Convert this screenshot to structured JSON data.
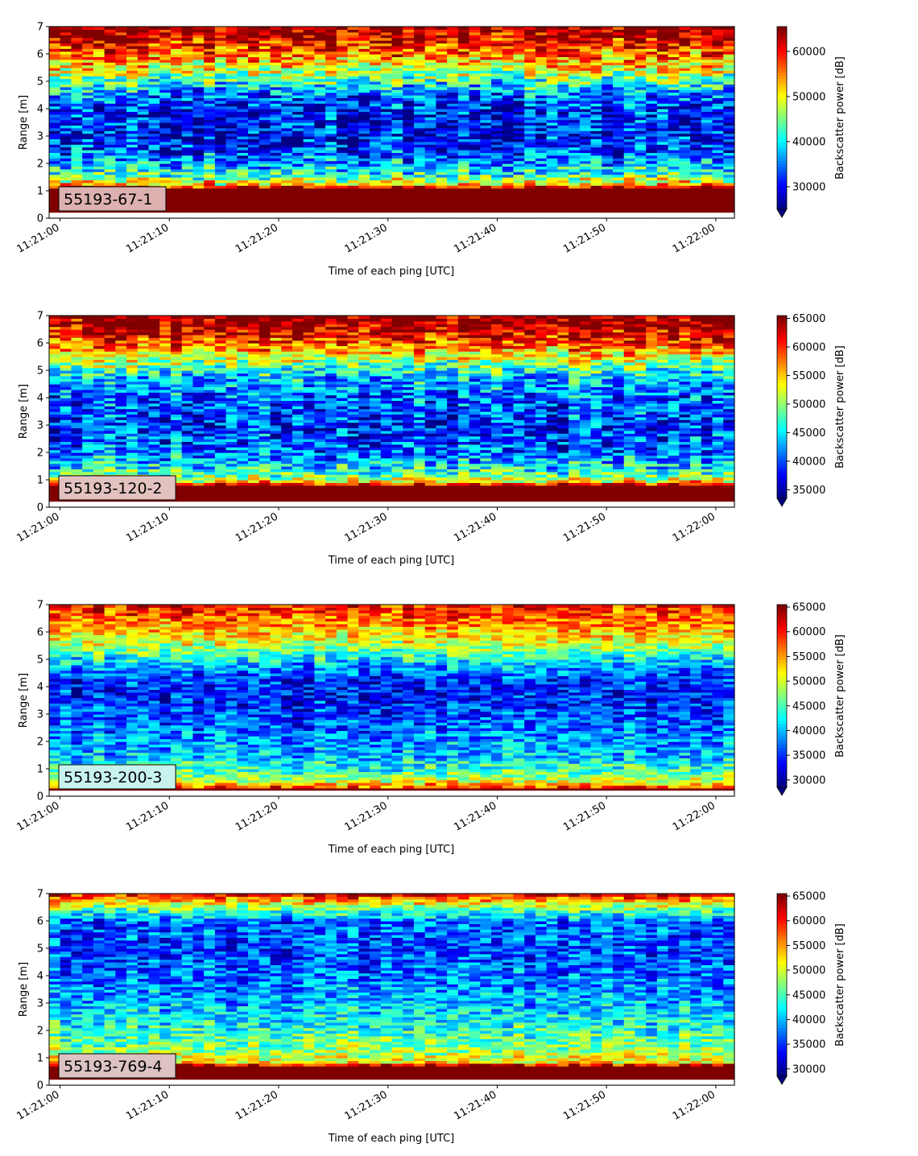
{
  "chart_data": [
    {
      "type": "heatmap",
      "label": "55193-67-1",
      "label_bg": "#dcb1b0",
      "xlabel": "Time of each ping [UTC]",
      "ylabel": "Range [m]",
      "colorbar_label": "Backscatter power [dB]",
      "colormap": "jet",
      "extend": "min",
      "x_start": "11:21:00",
      "x_end": "11:22:00",
      "xticks": [
        "11:21:00",
        "11:21:10",
        "11:21:20",
        "11:21:30",
        "11:21:40",
        "11:21:50",
        "11:22:00"
      ],
      "ylim": [
        0,
        7
      ],
      "yticks": [
        0,
        1,
        2,
        3,
        4,
        5,
        6,
        7
      ],
      "clim": [
        25000,
        65500
      ],
      "cticks": [
        30000,
        40000,
        50000,
        60000
      ],
      "bottom_band": {
        "from": 0.25,
        "to": 1.1,
        "value": 65500
      },
      "profile": [
        [
          0,
          65500
        ],
        [
          1.1,
          65500
        ],
        [
          1.25,
          52000
        ],
        [
          1.6,
          42000
        ],
        [
          2.2,
          34000
        ],
        [
          3.0,
          30000
        ],
        [
          4.0,
          31000
        ],
        [
          4.5,
          35000
        ],
        [
          5.0,
          42000
        ],
        [
          5.5,
          50000
        ],
        [
          6.0,
          56000
        ],
        [
          6.6,
          62000
        ],
        [
          7.0,
          65500
        ]
      ],
      "noise": 8000,
      "trend": 3000
    },
    {
      "type": "heatmap",
      "label": "55193-120-2",
      "label_bg": "#e2c2bf",
      "xlabel": "Time of each ping [UTC]",
      "ylabel": "Range [m]",
      "colorbar_label": "Backscatter power [dB]",
      "colormap": "jet",
      "extend": "min",
      "x_start": "11:21:00",
      "x_end": "11:22:00",
      "xticks": [
        "11:21:00",
        "11:21:10",
        "11:21:20",
        "11:21:30",
        "11:21:40",
        "11:21:50",
        "11:22:00"
      ],
      "ylim": [
        0,
        7
      ],
      "yticks": [
        0,
        1,
        2,
        3,
        4,
        5,
        6,
        7
      ],
      "clim": [
        33500,
        65500
      ],
      "cticks": [
        35000,
        40000,
        45000,
        50000,
        55000,
        60000,
        65000
      ],
      "bottom_band": {
        "from": 0.25,
        "to": 0.8,
        "value": 65500
      },
      "profile": [
        [
          0,
          65500
        ],
        [
          0.8,
          65500
        ],
        [
          0.95,
          54000
        ],
        [
          1.3,
          47000
        ],
        [
          2.0,
          41000
        ],
        [
          3.0,
          39000
        ],
        [
          4.0,
          40500
        ],
        [
          4.8,
          44000
        ],
        [
          5.3,
          50000
        ],
        [
          5.8,
          57000
        ],
        [
          6.4,
          63000
        ],
        [
          7.0,
          65500
        ]
      ],
      "noise": 6000,
      "trend": 2500
    },
    {
      "type": "heatmap",
      "label": "55193-200-3",
      "label_bg": "#c8f2ee",
      "xlabel": "Time of each ping [UTC]",
      "ylabel": "Range [m]",
      "colorbar_label": "Backscatter power [dB]",
      "colormap": "jet",
      "extend": "min",
      "x_start": "11:21:00",
      "x_end": "11:22:00",
      "xticks": [
        "11:21:00",
        "11:21:10",
        "11:21:20",
        "11:21:30",
        "11:21:40",
        "11:21:50",
        "11:22:00"
      ],
      "ylim": [
        0,
        7
      ],
      "yticks": [
        0,
        1,
        2,
        3,
        4,
        5,
        6,
        7
      ],
      "clim": [
        28500,
        65500
      ],
      "cticks": [
        30000,
        35000,
        40000,
        45000,
        50000,
        55000,
        60000,
        65000
      ],
      "bottom_band": {
        "from": 0.15,
        "to": 0.3,
        "value": 65500
      },
      "profile": [
        [
          0,
          65500
        ],
        [
          0.3,
          60000
        ],
        [
          0.5,
          52000
        ],
        [
          0.9,
          45000
        ],
        [
          1.5,
          40000
        ],
        [
          2.5,
          37000
        ],
        [
          3.5,
          34000
        ],
        [
          4.3,
          34500
        ],
        [
          5.0,
          42000
        ],
        [
          5.6,
          50000
        ],
        [
          6.2,
          55000
        ],
        [
          7.0,
          60000
        ]
      ],
      "noise": 5500,
      "trend": 2000
    },
    {
      "type": "heatmap",
      "label": "55193-769-4",
      "label_bg": "#dcc2c2",
      "xlabel": "Time of each ping [UTC]",
      "ylabel": "Range [m]",
      "colorbar_label": "Backscatter power [dB]",
      "colormap": "jet",
      "extend": "min",
      "x_start": "11:21:00",
      "x_end": "11:22:00",
      "xticks": [
        "11:21:00",
        "11:21:10",
        "11:21:20",
        "11:21:30",
        "11:21:40",
        "11:21:50",
        "11:22:00"
      ],
      "ylim": [
        0,
        7
      ],
      "yticks": [
        0,
        1,
        2,
        3,
        4,
        5,
        6,
        7
      ],
      "clim": [
        28500,
        65500
      ],
      "cticks": [
        30000,
        35000,
        40000,
        45000,
        50000,
        55000,
        60000,
        65000
      ],
      "bottom_band": {
        "from": 0.25,
        "to": 0.7,
        "value": 65500
      },
      "profile": [
        [
          0,
          65500
        ],
        [
          0.7,
          65500
        ],
        [
          0.85,
          52000
        ],
        [
          1.2,
          48000
        ],
        [
          2.0,
          44000
        ],
        [
          3.0,
          40000
        ],
        [
          4.0,
          37000
        ],
        [
          5.0,
          36000
        ],
        [
          6.0,
          37000
        ],
        [
          6.6,
          50000
        ],
        [
          7.0,
          62000
        ]
      ],
      "noise": 5500,
      "trend": 2000
    }
  ]
}
